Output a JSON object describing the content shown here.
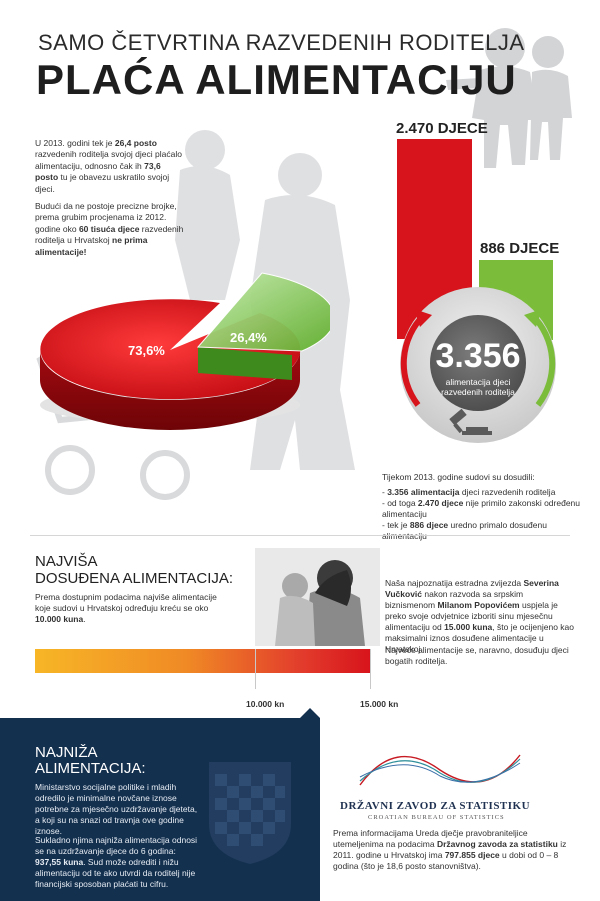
{
  "header": {
    "title_line1": "SAMO ČETVRTINA RAZVEDENIH RODITELJA",
    "title_line2": "PLAĆA ALIMENTACIJU"
  },
  "intro": {
    "p1_a": "U 2013. godini tek je ",
    "p1_b": "26,4 posto",
    "p1_c": " razvedenih roditelja svojoj djeci plaćalo alimentaciju, odnosno čak ih ",
    "p1_d": "73,6 posto",
    "p1_e": " tu je obavezu uskratilo svojoj djeci.",
    "p2_a": "Budući da ne postoje precizne brojke, prema grubim procjenama iz 2012. godine oko ",
    "p2_b": "60 tisuća djece",
    "p2_c": " razvedenih roditelja u Hrvatskoj ",
    "p2_d": "ne prima alimentacije!"
  },
  "pie": {
    "red_label": "73,6%",
    "green_label": "26,4%",
    "red_value": 73.6,
    "green_value": 26.4
  },
  "bars": {
    "red_label": "2.470 DJECE",
    "green_label": "886 DJECE",
    "red_value": 2470,
    "green_value": 886
  },
  "circle": {
    "number": "3.356",
    "sub1": "alimentacija djeci",
    "sub2": "razvedenih roditelja"
  },
  "court": {
    "intro": "Tijekom 2013. godine sudovi su dosudili:",
    "item1_a": "- ",
    "item1_b": "3.356 alimentacija",
    "item1_c": " djeci razvedenih roditelja",
    "item2_a": "- od toga ",
    "item2_b": "2.470 djece",
    "item2_c": " nije primilo zakonski određenu alimentaciju",
    "item3_a": "- tek je ",
    "item3_b": "886 djece",
    "item3_c": " uredno primalo dosuđenu alimentaciju"
  },
  "highest": {
    "title1": "NAJVIŠA",
    "title2": "DOSUĐENA ALIMENTACIJA:",
    "text_a": "Prema dostupnim podacima najviše alimentacije koje sudovi u Hrvatskoj određuju kreću se oko ",
    "text_b": "10.000 kuna",
    "text_c": ".",
    "right_a": "Naša najpoznatija estradna zvijezda ",
    "right_b": "Severina Vučković",
    "right_c": " nakon razvoda sa srpskim biznismenom ",
    "right_d": "Milanom Popovićem",
    "right_e": " uspjela je preko svoje odvjetnice izboriti sinu mjesečnu alimentaciju od ",
    "right_f": "15.000 kuna",
    "right_g": ", što je ocijenjeno kao maksimalni iznos dosuđene alimentacije u Hrvatskoj.",
    "right2": "Najveće alimentacije se, naravno, dosuđuju djeci bogatih roditelja.",
    "scale_a": "10.000 kn",
    "scale_b": "15.000 kn"
  },
  "lowest": {
    "title1": "NAJNIŽA",
    "title2": "ALIMENTACIJA:",
    "p1": "Ministarstvo socijalne politike i mladih odredilo je minimalne novčane iznose potrebne za mjesečno uzdržavanje djeteta, a koji su na snazi od travnja ove godine iznose.",
    "p2_a": "Sukladno njima najniža alimentacija odnosi se na uzdržavanje djece do 6 godina: ",
    "p2_b": "937,55 kuna",
    "p2_c": ". Sud može odrediti i nižu alimentaciju od te ako utvrdi da roditelj nije financijski sposoban plaćati tu cifru."
  },
  "dzs": {
    "name": "DRŽAVNI ZAVOD ZA STATISTIKU",
    "name_en": "CROATIAN BUREAU OF STATISTICS",
    "text_a": "Prema informacijama Ureda dječje pravobraniteljice utemeljenima na podacima ",
    "text_b": "Državnog zavoda za statistiku",
    "text_c": " iz 2011. godine u Hrvatskoj ima ",
    "text_d": "797.855 djece",
    "text_e": " u dobi od 0 – 8 godina (što je 18,6 posto stanovništva)."
  },
  "colors": {
    "red": "#d7141b",
    "green": "#7bbd3a",
    "navy": "#14304f",
    "orange": "#f4a622"
  }
}
